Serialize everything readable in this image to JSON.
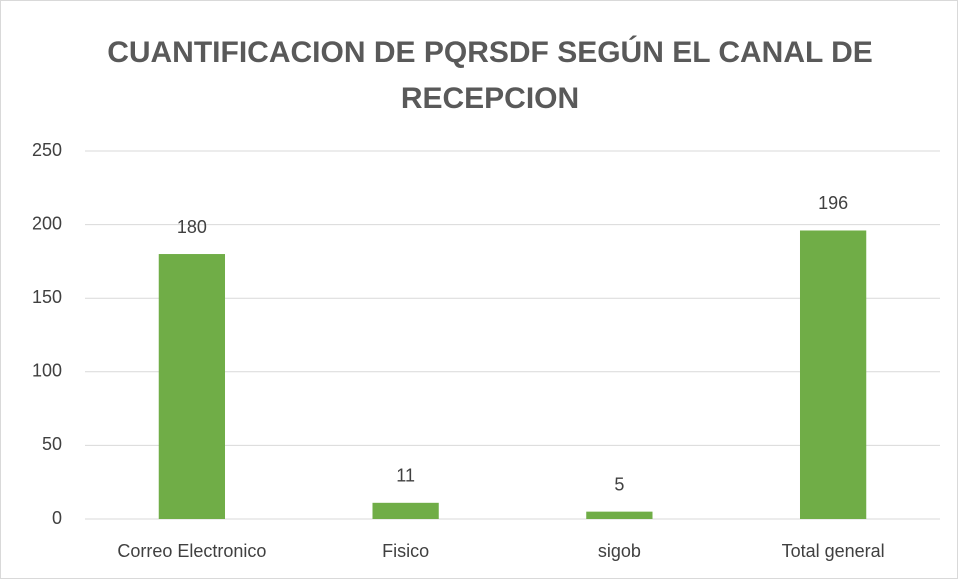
{
  "chart_data": {
    "type": "bar",
    "title": "CUANTIFICACION DE PQRSDF SEGÚN EL CANAL DE RECEPCION",
    "categories": [
      "Correo Electronico",
      "Fisico",
      "sigob",
      "Total general"
    ],
    "values": [
      180,
      11,
      5,
      196
    ],
    "color": "#70ad47",
    "ylim": [
      0,
      250
    ],
    "yticks": [
      0,
      50,
      100,
      150,
      200,
      250
    ],
    "grid": true
  }
}
